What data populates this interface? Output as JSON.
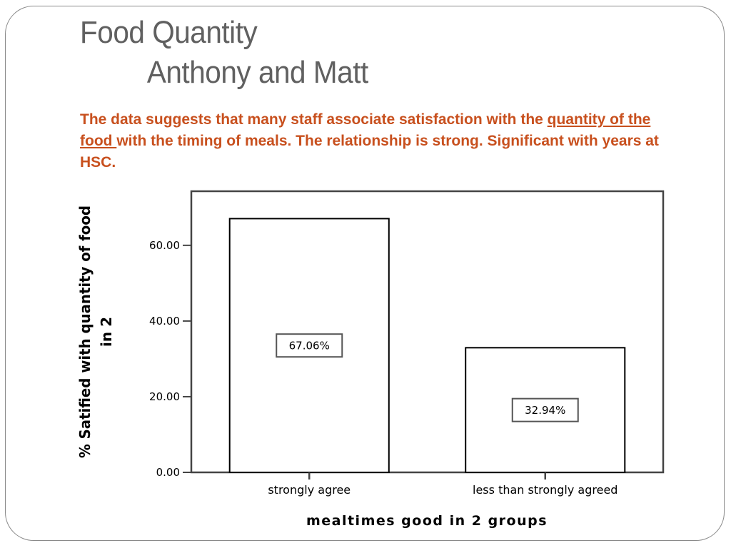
{
  "slide": {
    "title_line1": "Food Quantity",
    "title_line2": "Anthony and Matt",
    "caption": {
      "part1": "The data suggests that many staff associate satisfaction with the ",
      "underlined": "quantity of the food ",
      "part2": "with the timing of meals.   The relationship is strong. Significant with years at HSC."
    },
    "colors": {
      "title": "#606060",
      "caption": "#c8501e",
      "frame": "#8a8a8a"
    }
  },
  "chart_data": {
    "type": "bar",
    "categories": [
      "strongly agree",
      "less than strongly agreed"
    ],
    "values": [
      67.06,
      32.94
    ],
    "data_labels": [
      "67.06%",
      "32.94%"
    ],
    "title": "",
    "xlabel": "mealtimes good in 2 groups",
    "ylabel_lines": [
      "% Satified with quantity of food",
      "in 2"
    ],
    "yticks": [
      "0.00",
      "20.00",
      "40.00",
      "60.00"
    ],
    "ytick_values": [
      0,
      20,
      40,
      60
    ],
    "ylim": [
      0,
      74.3
    ],
    "grid": false,
    "legend": "none",
    "bar_fill": "#ffffff",
    "bar_stroke": "#000000"
  }
}
